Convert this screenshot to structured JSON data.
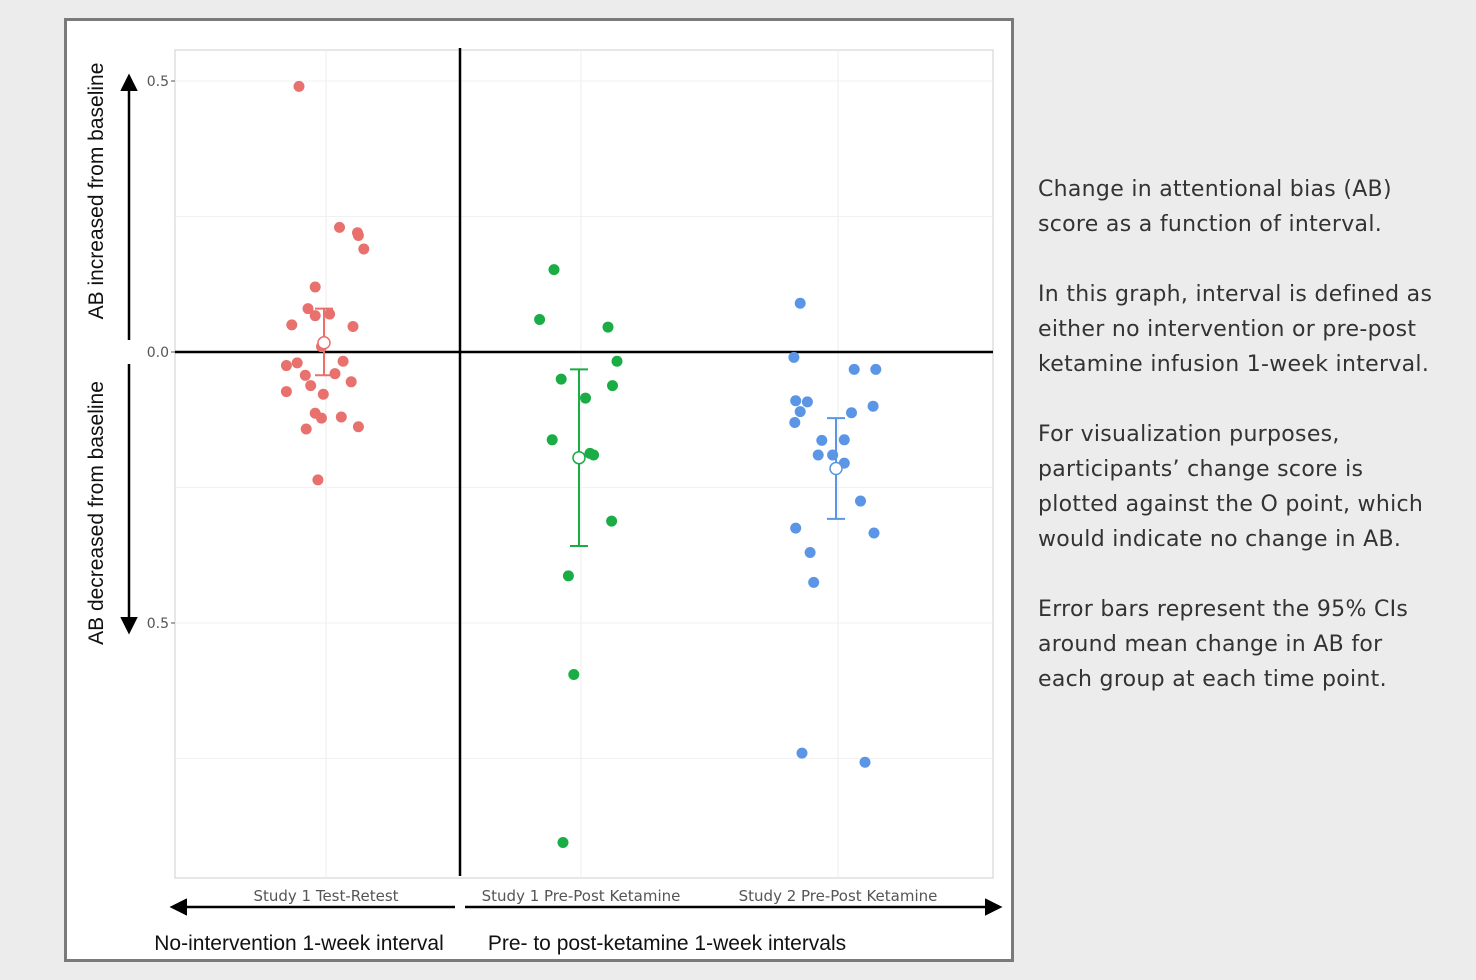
{
  "chart_data": {
    "type": "scatter",
    "categories": [
      "Study 1 Test-Retest",
      "Study 1 Pre-Post Ketamine",
      "Study 2 Pre-Post Ketamine"
    ],
    "ylim": [
      -0.98,
      0.56
    ],
    "y_tick_labels": [
      "0.5",
      "0.0",
      "0.5"
    ],
    "y_ticks": [
      0.5,
      0.0,
      -0.5
    ],
    "grid": true,
    "ylabel_up": "AB increased from baseline",
    "ylabel_down": "AB decreased from baseline",
    "bottom_label_left": "No-intervention 1-week interval",
    "bottom_label_right": "Pre- to post-ketamine 1-week intervals",
    "series": [
      {
        "category": "Study 1 Test-Retest",
        "color": "#e8716d",
        "mean": 0.017,
        "ci": [
          -0.043,
          0.08
        ],
        "points": [
          [
            -0.3,
            0.49
          ],
          [
            0.15,
            0.23
          ],
          [
            0.35,
            0.22
          ],
          [
            0.36,
            0.215
          ],
          [
            0.42,
            0.19
          ],
          [
            -0.12,
            0.12
          ],
          [
            -0.2,
            0.08
          ],
          [
            -0.12,
            0.067
          ],
          [
            0.04,
            0.07
          ],
          [
            -0.38,
            0.05
          ],
          [
            0.3,
            0.047
          ],
          [
            -0.05,
            0.01
          ],
          [
            -0.44,
            -0.025
          ],
          [
            -0.32,
            -0.02
          ],
          [
            0.19,
            -0.017
          ],
          [
            0.1,
            -0.04
          ],
          [
            -0.23,
            -0.043
          ],
          [
            0.28,
            -0.055
          ],
          [
            -0.17,
            -0.062
          ],
          [
            -0.44,
            -0.073
          ],
          [
            -0.03,
            -0.078
          ],
          [
            -0.12,
            -0.113
          ],
          [
            0.17,
            -0.12
          ],
          [
            -0.05,
            -0.122
          ],
          [
            -0.22,
            -0.142
          ],
          [
            0.36,
            -0.138
          ],
          [
            -0.09,
            -0.236
          ]
        ]
      },
      {
        "category": "Study 1 Pre-Post Ketamine",
        "color": "#1aac45",
        "mean": -0.195,
        "ci": [
          -0.358,
          -0.032
        ],
        "points": [
          [
            -0.3,
            0.152
          ],
          [
            -0.46,
            0.06
          ],
          [
            0.3,
            0.046
          ],
          [
            0.4,
            -0.017
          ],
          [
            -0.22,
            -0.05
          ],
          [
            0.35,
            -0.062
          ],
          [
            0.05,
            -0.085
          ],
          [
            -0.32,
            -0.162
          ],
          [
            0.1,
            -0.187
          ],
          [
            0.14,
            -0.19
          ],
          [
            0.34,
            -0.312
          ],
          [
            -0.14,
            -0.413
          ],
          [
            -0.08,
            -0.595
          ],
          [
            -0.2,
            -0.905
          ]
        ]
      },
      {
        "category": "Study 2 Pre-Post Ketamine",
        "color": "#5b95e5",
        "mean": -0.215,
        "ci": [
          -0.308,
          -0.122
        ],
        "points": [
          [
            -0.42,
            0.09
          ],
          [
            -0.49,
            -0.01
          ],
          [
            0.18,
            -0.032
          ],
          [
            0.42,
            -0.032
          ],
          [
            -0.47,
            -0.09
          ],
          [
            -0.34,
            -0.092
          ],
          [
            -0.42,
            -0.11
          ],
          [
            0.39,
            -0.1
          ],
          [
            0.15,
            -0.112
          ],
          [
            -0.48,
            -0.13
          ],
          [
            -0.18,
            -0.163
          ],
          [
            0.07,
            -0.162
          ],
          [
            -0.22,
            -0.19
          ],
          [
            -0.06,
            -0.19
          ],
          [
            0.07,
            -0.205
          ],
          [
            0.25,
            -0.275
          ],
          [
            -0.47,
            -0.325
          ],
          [
            0.4,
            -0.334
          ],
          [
            -0.31,
            -0.37
          ],
          [
            -0.27,
            -0.425
          ],
          [
            -0.4,
            -0.74
          ],
          [
            0.3,
            -0.757
          ]
        ]
      }
    ]
  },
  "caption": {
    "paragraphs": [
      "Change in attentional bias (AB) score as a function of interval.",
      "In this graph, interval is defined as either no intervention or pre-post ketamine infusion 1-week interval.",
      "For visualization purposes, participants’ change score is plotted against the O point, which would indicate no change in AB.",
      "Error bars represent the 95% CIs around mean change in AB for each group at each time point."
    ]
  }
}
